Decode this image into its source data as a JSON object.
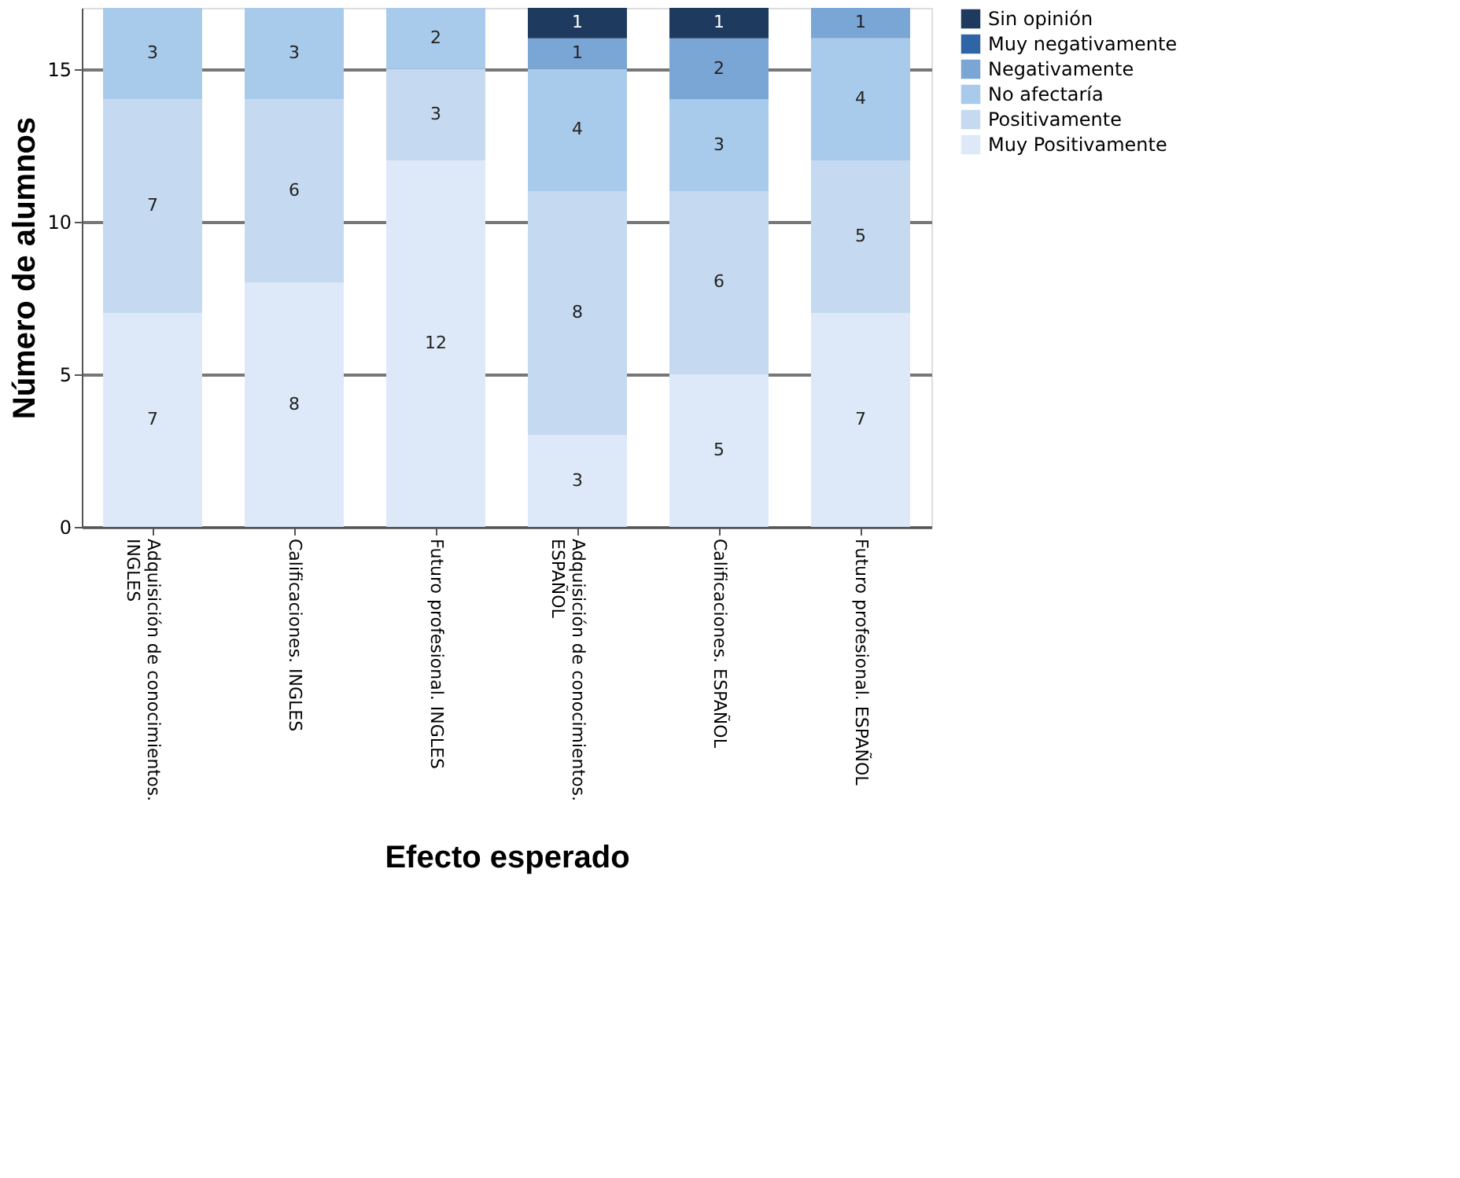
{
  "chart_data": {
    "type": "bar",
    "stacked": true,
    "xlabel": "Efecto esperado",
    "ylabel": "Número de alumnos",
    "categories": [
      "Adquisición de conocimientos. INGLES",
      "Calificaciones. INGLES",
      "Futuro profesional. INGLES",
      "Adquisición de conocimientos. ESPAÑOL",
      "Calificaciones. ESPAÑOL",
      "Futuro profesional. ESPAÑOL"
    ],
    "series": [
      {
        "name": "Muy Positivamente",
        "color": "#dde9f8",
        "values": [
          7,
          8,
          12,
          3,
          5,
          7
        ]
      },
      {
        "name": "Positivamente",
        "color": "#c5d9f0",
        "values": [
          7,
          6,
          3,
          8,
          6,
          5
        ]
      },
      {
        "name": "No afectaría",
        "color": "#a9cbeb",
        "values": [
          3,
          3,
          2,
          4,
          3,
          4
        ]
      },
      {
        "name": "Negativamente",
        "color": "#7aa6d5",
        "values": [
          null,
          null,
          null,
          1,
          2,
          1
        ]
      },
      {
        "name": "Muy negativamente",
        "color": "#2f64a6",
        "values": [
          null,
          null,
          null,
          null,
          null,
          null
        ]
      },
      {
        "name": "Sin opinión",
        "color": "#1e3a5f",
        "values": [
          null,
          null,
          null,
          1,
          1,
          null
        ]
      }
    ],
    "ylim": [
      0,
      17
    ],
    "yticks": [
      0,
      5,
      10,
      15
    ],
    "grid": "y",
    "legend": "right",
    "data_labels": true
  }
}
